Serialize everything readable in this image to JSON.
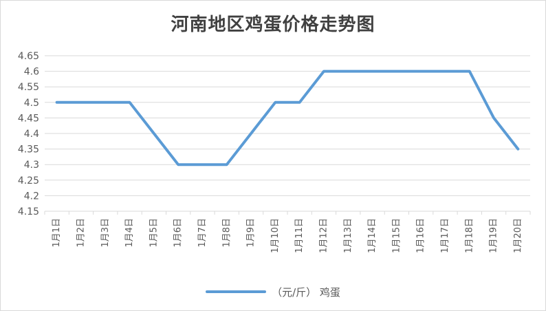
{
  "chart_data": {
    "type": "line",
    "title": "河南地区鸡蛋价格走势图",
    "categories": [
      "1月1日",
      "1月2日",
      "1月3日",
      "1月4日",
      "1月5日",
      "1月6日",
      "1月7日",
      "1月8日",
      "1月9日",
      "1月10日",
      "1月11日",
      "1月12日",
      "1月13日",
      "1月14日",
      "1月15日",
      "1月16日",
      "1月17日",
      "1月18日",
      "1月19日",
      "1月20日"
    ],
    "series": [
      {
        "name": "（元/斤） 鸡蛋",
        "values": [
          4.5,
          4.5,
          4.5,
          4.5,
          4.4,
          4.3,
          4.3,
          4.3,
          4.4,
          4.5,
          4.5,
          4.6,
          4.6,
          4.6,
          4.6,
          4.6,
          4.6,
          4.6,
          4.45,
          4.35
        ],
        "color": "#5b9bd5"
      }
    ],
    "ylim": [
      4.15,
      4.65
    ],
    "yticks": [
      4.15,
      4.2,
      4.25,
      4.3,
      4.35,
      4.4,
      4.45,
      4.5,
      4.55,
      4.6,
      4.65
    ],
    "ytick_labels": [
      "4.15",
      "4.2",
      "4.25",
      "4.3",
      "4.35",
      "4.4",
      "4.45",
      "4.5",
      "4.55",
      "4.6",
      "4.65"
    ],
    "grid": true,
    "legend_position": "bottom",
    "colors": {
      "line": "#5b9bd5",
      "grid": "#d9d9d9",
      "text": "#595959",
      "title": "#404040"
    }
  }
}
